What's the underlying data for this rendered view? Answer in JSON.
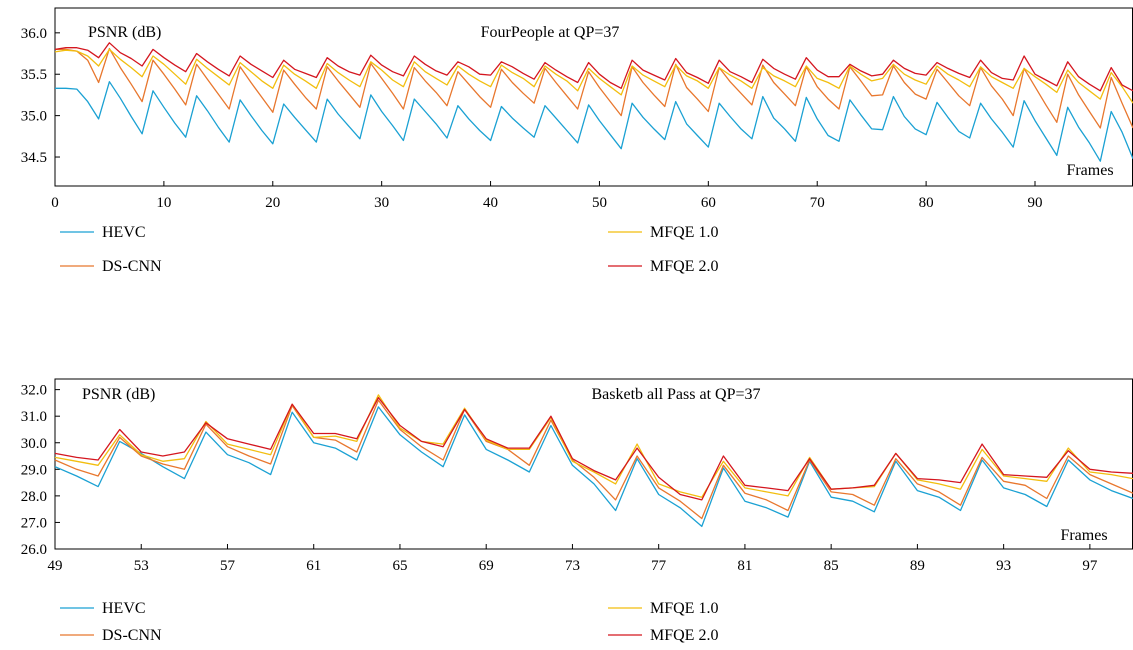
{
  "colors": {
    "HEVC": "#1BA1D3",
    "DS-CNN": "#E8772E",
    "MFQE 1.0": "#F2BE0F",
    "MFQE 2.0": "#D4161F"
  },
  "chart_data": [
    {
      "type": "line",
      "title": "FourPeople at QP=37",
      "ylabel": "PSNR (dB)",
      "xlabel": "Frames",
      "xlim": [
        0,
        99
      ],
      "ylim": [
        34.15,
        36.3
      ],
      "x_ticks": [
        "0",
        "10",
        "20",
        "30",
        "40",
        "50",
        "60",
        "70",
        "80",
        "90"
      ],
      "y_ticks": [
        "34.5",
        "35.0",
        "35.5",
        "36.0"
      ],
      "grid": false,
      "legend_position": "below",
      "x": [
        0,
        1,
        2,
        3,
        4,
        5,
        6,
        7,
        8,
        9,
        10,
        11,
        12,
        13,
        14,
        15,
        16,
        17,
        18,
        19,
        20,
        21,
        22,
        23,
        24,
        25,
        26,
        27,
        28,
        29,
        30,
        31,
        32,
        33,
        34,
        35,
        36,
        37,
        38,
        39,
        40,
        41,
        42,
        43,
        44,
        45,
        46,
        47,
        48,
        49,
        50,
        51,
        52,
        53,
        54,
        55,
        56,
        57,
        58,
        59,
        60,
        61,
        62,
        63,
        64,
        65,
        66,
        67,
        68,
        69,
        70,
        71,
        72,
        73,
        74,
        75,
        76,
        77,
        78,
        79,
        80,
        81,
        82,
        83,
        84,
        85,
        86,
        87,
        88,
        89,
        90,
        91,
        92,
        93,
        94,
        95,
        96,
        97,
        98,
        99
      ],
      "series": [
        {
          "name": "HEVC",
          "values": [
            35.33,
            35.33,
            35.32,
            35.17,
            34.96,
            35.41,
            35.21,
            34.99,
            34.78,
            35.3,
            35.1,
            34.91,
            34.74,
            35.24,
            35.06,
            34.86,
            34.68,
            35.19,
            35,
            34.82,
            34.66,
            35.14,
            34.98,
            34.83,
            34.68,
            35.2,
            35.02,
            34.87,
            34.72,
            35.25,
            35.05,
            34.88,
            34.7,
            35.2,
            35.05,
            34.9,
            34.73,
            35.12,
            34.96,
            34.82,
            34.7,
            35.11,
            34.97,
            34.85,
            34.74,
            35.12,
            34.97,
            34.82,
            34.67,
            35.13,
            34.94,
            34.77,
            34.6,
            35.15,
            34.98,
            34.84,
            34.71,
            35.17,
            34.9,
            34.76,
            34.62,
            35.15,
            34.99,
            34.84,
            34.72,
            35.23,
            34.97,
            34.84,
            34.69,
            35.22,
            34.96,
            34.76,
            34.69,
            35.19,
            35.01,
            34.84,
            34.83,
            35.23,
            34.99,
            34.84,
            34.77,
            35.16,
            34.98,
            34.81,
            34.73,
            35.15,
            34.96,
            34.8,
            34.62,
            35.18,
            34.94,
            34.73,
            34.52,
            35.1,
            34.86,
            34.67,
            34.45,
            35.05,
            34.8,
            34.48
          ]
        },
        {
          "name": "DS-CNN",
          "values": [
            35.8,
            35.8,
            35.78,
            35.67,
            35.4,
            35.81,
            35.58,
            35.38,
            35.17,
            35.67,
            35.5,
            35.32,
            35.13,
            35.62,
            35.44,
            35.26,
            35.08,
            35.59,
            35.4,
            35.22,
            35.04,
            35.55,
            35.38,
            35.22,
            35.08,
            35.59,
            35.42,
            35.26,
            35.1,
            35.63,
            35.45,
            35.27,
            35.08,
            35.58,
            35.42,
            35.28,
            35.12,
            35.53,
            35.38,
            35.23,
            35.1,
            35.56,
            35.4,
            35.27,
            35.15,
            35.57,
            35.4,
            35.24,
            35.08,
            35.53,
            35.34,
            35.17,
            35,
            35.59,
            35.4,
            35.25,
            35.11,
            35.62,
            35.34,
            35.2,
            35.05,
            35.58,
            35.41,
            35.27,
            35.13,
            35.61,
            35.4,
            35.26,
            35.12,
            35.59,
            35.35,
            35.2,
            35.08,
            35.59,
            35.42,
            35.24,
            35.25,
            35.6,
            35.4,
            35.26,
            35.2,
            35.56,
            35.4,
            35.24,
            35.12,
            35.58,
            35.36,
            35.2,
            35,
            35.57,
            35.35,
            35.13,
            34.92,
            35.5,
            35.25,
            35.05,
            34.85,
            35.46,
            35.15,
            34.85
          ]
        },
        {
          "name": "MFQE 1.0",
          "values": [
            35.77,
            35.79,
            35.78,
            35.72,
            35.6,
            35.8,
            35.68,
            35.58,
            35.47,
            35.72,
            35.62,
            35.5,
            35.38,
            35.68,
            35.57,
            35.47,
            35.37,
            35.64,
            35.53,
            35.42,
            35.33,
            35.61,
            35.5,
            35.42,
            35.33,
            35.63,
            35.52,
            35.43,
            35.35,
            35.65,
            35.55,
            35.43,
            35.35,
            35.65,
            35.53,
            35.45,
            35.37,
            35.6,
            35.5,
            35.42,
            35.35,
            35.61,
            35.52,
            35.45,
            35.35,
            35.6,
            35.5,
            35.42,
            35.3,
            35.57,
            35.45,
            35.35,
            35.25,
            35.6,
            35.49,
            35.42,
            35.35,
            35.61,
            35.48,
            35.42,
            35.33,
            35.58,
            35.49,
            35.42,
            35.33,
            35.58,
            35.48,
            35.42,
            35.35,
            35.6,
            35.45,
            35.4,
            35.33,
            35.6,
            35.5,
            35.42,
            35.45,
            35.62,
            35.5,
            35.43,
            35.38,
            35.6,
            35.5,
            35.43,
            35.35,
            35.59,
            35.47,
            35.4,
            35.33,
            35.57,
            35.47,
            35.38,
            35.28,
            35.55,
            35.4,
            35.3,
            35.2,
            35.52,
            35.35,
            35.15
          ]
        },
        {
          "name": "MFQE 2.0",
          "values": [
            35.8,
            35.82,
            35.82,
            35.79,
            35.7,
            35.88,
            35.76,
            35.69,
            35.6,
            35.8,
            35.7,
            35.61,
            35.53,
            35.75,
            35.65,
            35.56,
            35.48,
            35.72,
            35.62,
            35.54,
            35.46,
            35.67,
            35.56,
            35.51,
            35.46,
            35.7,
            35.6,
            35.53,
            35.49,
            35.73,
            35.61,
            35.53,
            35.48,
            35.72,
            35.62,
            35.54,
            35.49,
            35.65,
            35.59,
            35.5,
            35.49,
            35.65,
            35.59,
            35.51,
            35.44,
            35.64,
            35.55,
            35.47,
            35.4,
            35.64,
            35.5,
            35.4,
            35.33,
            35.67,
            35.55,
            35.49,
            35.43,
            35.69,
            35.52,
            35.46,
            35.39,
            35.67,
            35.53,
            35.47,
            35.4,
            35.68,
            35.57,
            35.5,
            35.44,
            35.7,
            35.55,
            35.47,
            35.47,
            35.62,
            35.54,
            35.48,
            35.5,
            35.67,
            35.57,
            35.51,
            35.49,
            35.64,
            35.57,
            35.51,
            35.46,
            35.67,
            35.52,
            35.45,
            35.43,
            35.72,
            35.5,
            35.43,
            35.36,
            35.65,
            35.47,
            35.38,
            35.3,
            35.58,
            35.37,
            35.3
          ]
        }
      ]
    },
    {
      "type": "line",
      "title": "Basketb all Pass at QP=37",
      "ylabel": "PSNR (dB)",
      "xlabel": "Frames",
      "xlim": [
        49,
        99
      ],
      "ylim": [
        26.0,
        32.4
      ],
      "x_ticks": [
        "49",
        "53",
        "57",
        "61",
        "65",
        "69",
        "73",
        "77",
        "81",
        "85",
        "89",
        "93",
        "97"
      ],
      "y_ticks": [
        "26.0",
        "27.0",
        "28.0",
        "29.0",
        "30.0",
        "31.0",
        "32.0"
      ],
      "grid": false,
      "legend_position": "below",
      "x": [
        49,
        50,
        51,
        52,
        53,
        54,
        55,
        56,
        57,
        58,
        59,
        60,
        61,
        62,
        63,
        64,
        65,
        66,
        67,
        68,
        69,
        70,
        71,
        72,
        73,
        74,
        75,
        76,
        77,
        78,
        79,
        80,
        81,
        82,
        83,
        84,
        85,
        86,
        87,
        88,
        89,
        90,
        91,
        92,
        93,
        94,
        95,
        96,
        97,
        98,
        99
      ],
      "series": [
        {
          "name": "HEVC",
          "values": [
            29.1,
            28.75,
            28.35,
            30.05,
            29.6,
            29.1,
            28.65,
            30.4,
            29.55,
            29.25,
            28.8,
            31.15,
            30.0,
            29.8,
            29.35,
            31.35,
            30.3,
            29.65,
            29.1,
            31.05,
            29.75,
            29.35,
            28.9,
            30.65,
            29.15,
            28.45,
            27.45,
            29.4,
            28.05,
            27.55,
            26.85,
            29.05,
            27.8,
            27.55,
            27.2,
            29.3,
            27.95,
            27.8,
            27.4,
            29.3,
            28.2,
            27.95,
            27.45,
            29.35,
            28.3,
            28.05,
            27.6,
            29.35,
            28.6,
            28.2,
            27.9
          ]
        },
        {
          "name": "DS-CNN",
          "values": [
            29.35,
            29.0,
            28.75,
            30.2,
            29.5,
            29.2,
            29.0,
            30.7,
            29.85,
            29.5,
            29.2,
            31.4,
            30.2,
            30.1,
            29.65,
            31.6,
            30.5,
            29.85,
            29.35,
            31.25,
            30.05,
            29.75,
            29.15,
            30.85,
            29.35,
            28.7,
            27.85,
            29.5,
            28.3,
            27.8,
            27.15,
            29.15,
            28.1,
            27.85,
            27.45,
            29.35,
            28.15,
            28.05,
            27.65,
            29.4,
            28.45,
            28.15,
            27.65,
            29.45,
            28.55,
            28.4,
            27.9,
            29.5,
            28.8,
            28.45,
            28.1
          ]
        },
        {
          "name": "MFQE 1.0",
          "values": [
            29.45,
            29.3,
            29.15,
            30.3,
            29.55,
            29.3,
            29.4,
            30.8,
            29.95,
            29.75,
            29.55,
            31.45,
            30.2,
            30.25,
            30.05,
            31.8,
            30.55,
            30.05,
            29.95,
            31.3,
            30.1,
            29.75,
            29.75,
            30.95,
            29.3,
            28.9,
            28.45,
            29.95,
            28.45,
            28.15,
            27.95,
            29.3,
            28.3,
            28.15,
            28.0,
            29.45,
            28.25,
            28.3,
            28.35,
            29.6,
            28.6,
            28.45,
            28.25,
            29.75,
            28.75,
            28.65,
            28.55,
            29.8,
            28.9,
            28.8,
            28.65
          ]
        },
        {
          "name": "MFQE 2.0",
          "values": [
            29.6,
            29.45,
            29.35,
            30.5,
            29.65,
            29.5,
            29.65,
            30.75,
            30.15,
            29.95,
            29.75,
            31.45,
            30.35,
            30.35,
            30.15,
            31.7,
            30.65,
            30.05,
            29.85,
            31.25,
            30.15,
            29.8,
            29.8,
            31.0,
            29.4,
            28.95,
            28.6,
            29.8,
            28.7,
            28.05,
            27.85,
            29.5,
            28.4,
            28.3,
            28.2,
            29.4,
            28.25,
            28.3,
            28.4,
            29.6,
            28.65,
            28.6,
            28.5,
            29.95,
            28.8,
            28.75,
            28.7,
            29.7,
            29.0,
            28.9,
            28.85
          ]
        }
      ]
    }
  ]
}
